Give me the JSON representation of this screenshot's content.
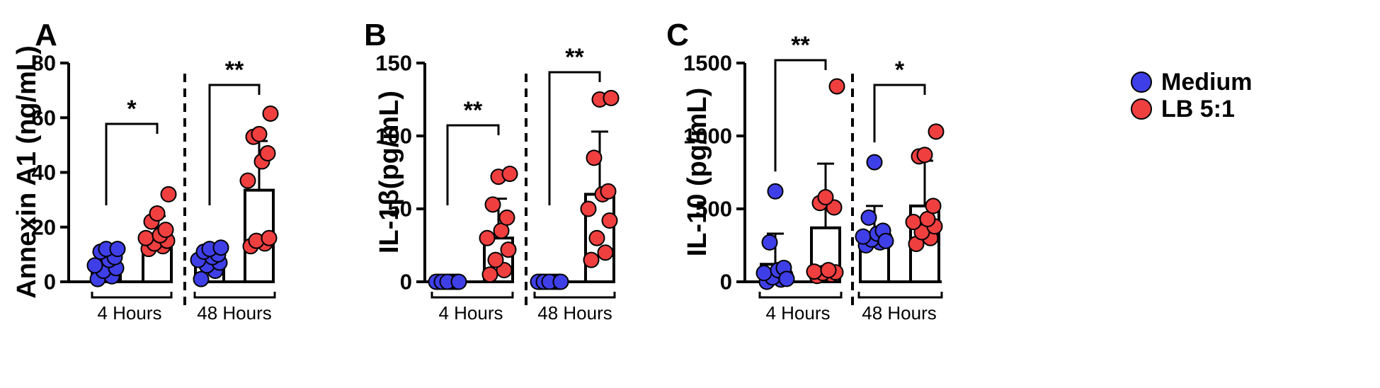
{
  "legend": {
    "placement": "right",
    "items": [
      {
        "label": "Medium",
        "color": "#3f3fe8"
      },
      {
        "label": "LB 5:1",
        "color": "#ef3f3f"
      }
    ]
  },
  "colors": {
    "medium": "#3f3fe8",
    "lb": "#ef3f3f",
    "ink": "#000000"
  },
  "chart_data": [
    {
      "type": "bar",
      "panel": "A",
      "ylabel": "Annexin A1 (ng/mL)",
      "ylim": [
        0,
        80
      ],
      "yticks": [
        "0",
        "20",
        "40",
        "60",
        "80"
      ],
      "groups": [
        "4 Hours",
        "48 Hours"
      ],
      "series": [
        {
          "name": "Medium",
          "means": [
            6,
            7.5
          ],
          "sd": [
            0,
            0
          ],
          "points": [
            [
              1,
              2,
              4,
              5,
              6,
              8,
              9,
              11,
              12,
              12
            ],
            [
              1,
              4,
              6,
              7,
              8,
              9,
              10,
              11,
              12,
              12.5
            ]
          ]
        },
        {
          "name": "LB 5:1",
          "means": [
            17.5,
            33.5
          ],
          "sd": [
            6.5,
            18
          ],
          "points": [
            [
              12,
              13,
              14,
              15,
              16,
              17,
              19,
              22,
              25,
              32
            ],
            [
              13,
              14,
              15,
              16,
              37,
              44,
              47,
              53,
              54,
              61.5
            ]
          ]
        }
      ],
      "significance": [
        "*",
        "**"
      ]
    },
    {
      "type": "bar",
      "panel": "B",
      "ylabel": "IL-1β(pg/mL)",
      "ylim": [
        0,
        150
      ],
      "yticks": [
        "0",
        "50",
        "100",
        "150"
      ],
      "groups": [
        "4 Hours",
        "48 Hours"
      ],
      "series": [
        {
          "name": "Medium",
          "means": [
            0,
            0
          ],
          "sd": [
            0,
            0
          ],
          "points": [
            [
              0,
              0,
              0,
              0,
              0,
              0,
              0,
              0,
              0,
              0
            ],
            [
              0,
              0,
              0,
              0,
              0,
              0,
              0,
              0,
              0,
              0
            ]
          ]
        },
        {
          "name": "LB 5:1",
          "means": [
            30,
            60
          ],
          "sd": [
            27,
            43
          ],
          "points": [
            [
              5,
              8,
              15,
              22,
              30,
              35,
              44,
              53,
              72,
              74
            ],
            [
              15,
              20,
              30,
              42,
              50,
              60,
              62,
              85,
              125,
              126
            ]
          ]
        }
      ],
      "significance": [
        "**",
        "**"
      ]
    },
    {
      "type": "bar",
      "panel": "C",
      "ylabel": "IL-10 (pg/mL)",
      "ylim": [
        0,
        1500
      ],
      "yticks": [
        "0",
        "500",
        "1000",
        "1500"
      ],
      "groups": [
        "4 Hours",
        "48 Hours"
      ],
      "series": [
        {
          "name": "Medium",
          "means": [
            120,
            330
          ],
          "sd": [
            210,
            190
          ],
          "points": [
            [
              0,
              15,
              30,
              45,
              60,
              80,
              95,
              270,
              620,
              20
            ],
            [
              250,
              270,
              290,
              300,
              310,
              330,
              350,
              440,
              820,
              280
            ]
          ]
        },
        {
          "name": "LB 5:1",
          "means": [
            370,
            520
          ],
          "sd": [
            440,
            310
          ],
          "points": [
            [
              40,
              50,
              60,
              65,
              70,
              80,
              510,
              540,
              580,
              1340
            ],
            [
              260,
              300,
              340,
              380,
              410,
              430,
              520,
              860,
              870,
              1030
            ]
          ]
        }
      ],
      "significance": [
        "**",
        "*"
      ]
    }
  ]
}
